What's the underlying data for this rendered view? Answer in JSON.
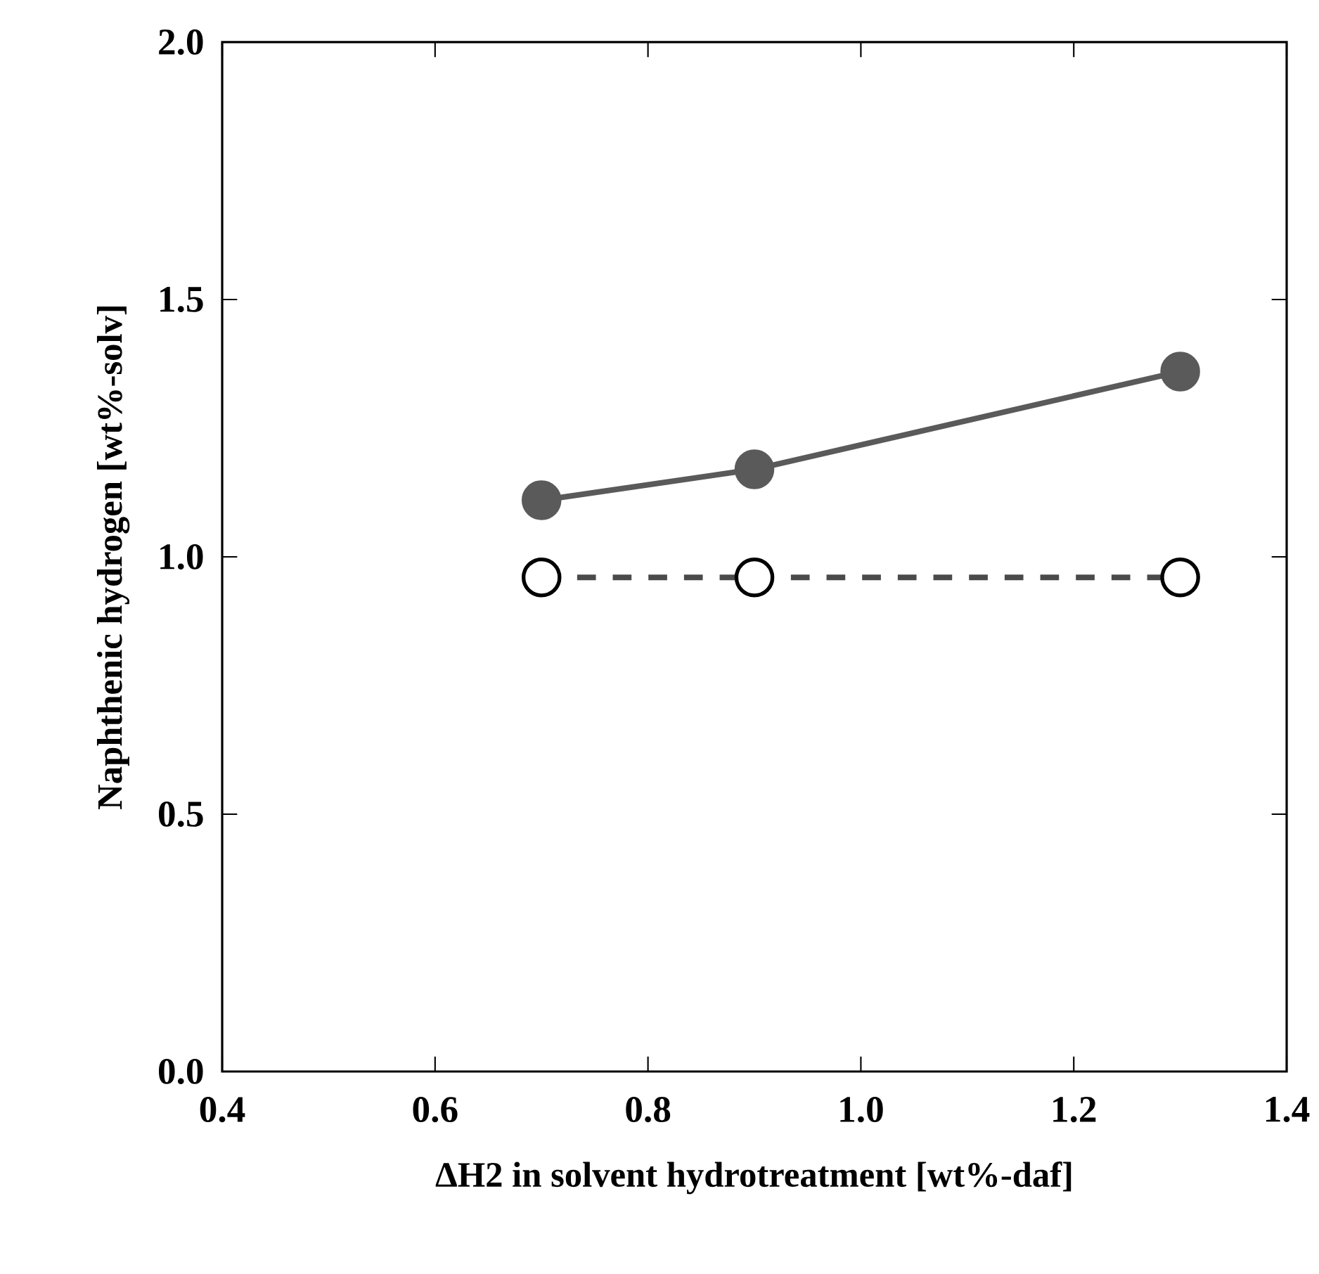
{
  "chart_data": {
    "type": "line",
    "xlabel": "ΔH2  in solvent hydrotreatment [wt%-daf]",
    "ylabel": "Naphthenic hydrogen  [wt%-solv]",
    "xlim": [
      0.4,
      1.4
    ],
    "ylim": [
      0,
      2.0
    ],
    "xticks": [
      0.4,
      0.6,
      0.8,
      {
        "value": 1.0,
        "label": "1.0"
      },
      1.2,
      1.4
    ],
    "yticks": [
      {
        "value": 0,
        "label": "0.0"
      },
      0.5,
      {
        "value": 1.0,
        "label": "1.0"
      },
      1.5,
      {
        "value": 2.0,
        "label": "2.0"
      }
    ],
    "grid": false,
    "marker": "circle",
    "series": [
      {
        "color": "#5a5a5a",
        "x": [
          0.7,
          0.9,
          1.3
        ],
        "values": [
          1.11,
          1.17,
          1.36
        ],
        "line_style": "solid"
      },
      {
        "color": "#4a4a4a",
        "x": [
          0.7,
          0.9,
          1.3
        ],
        "values": [
          0.96,
          0.96,
          0.96
        ],
        "line_style": "dashed"
      }
    ]
  }
}
